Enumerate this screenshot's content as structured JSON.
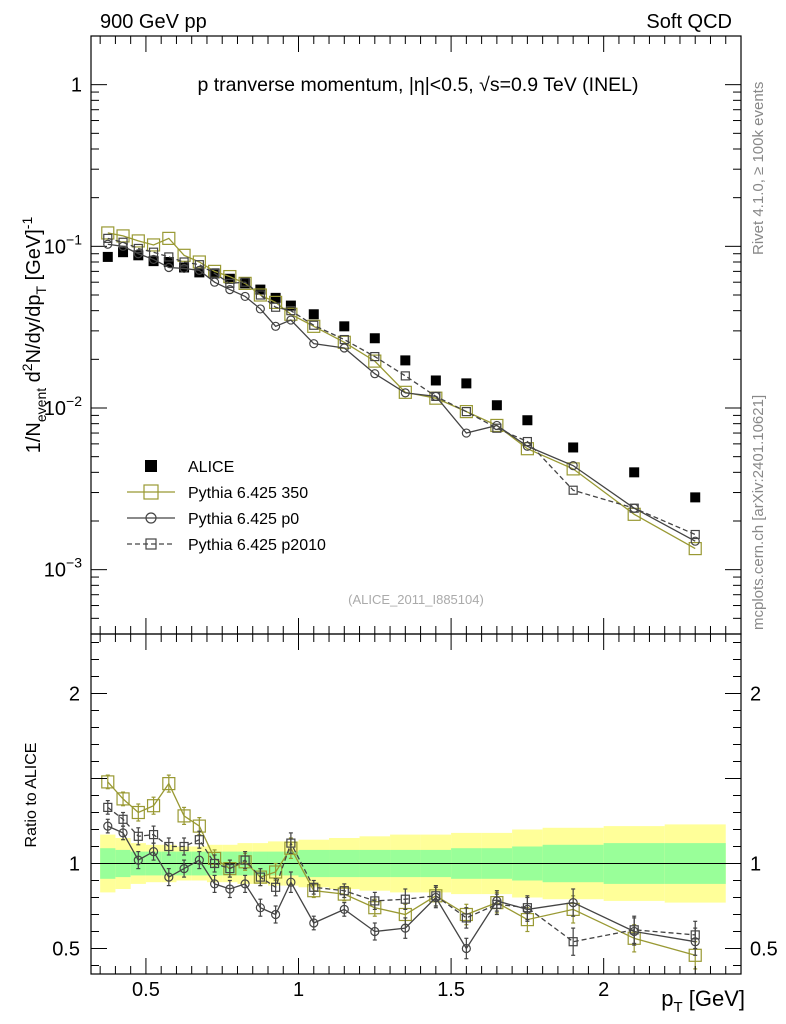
{
  "header": {
    "left": "900 GeV pp",
    "right": "Soft QCD"
  },
  "side_labels": {
    "top": "Rivet 4.1.0, ≥ 100k events",
    "bottom": "mcplots.cern.ch [arXiv:2401.10621]"
  },
  "chart_data": [
    {
      "type": "line",
      "scale": "log",
      "title": "p tranverse momentum, |η|<0.5, √s=0.9 TeV (INEL)",
      "ylabel": "1/N_event d²N/dy/dp_T [GeV]⁻¹",
      "analysis_tag": "(ALICE_2011_I885104)",
      "xlim": [
        0.32,
        2.45
      ],
      "ylim": [
        0.0004,
        2.0
      ],
      "y_ticks": [
        {
          "value": 0.001,
          "base": "10",
          "exp": "−3"
        },
        {
          "value": 0.01,
          "base": "10",
          "exp": "−2"
        },
        {
          "value": 0.1,
          "base": "10",
          "exp": "−1"
        },
        {
          "value": 1,
          "base": "1",
          "exp": ""
        }
      ],
      "x": [
        0.375,
        0.425,
        0.475,
        0.525,
        0.575,
        0.625,
        0.675,
        0.725,
        0.775,
        0.825,
        0.875,
        0.925,
        0.975,
        1.05,
        1.15,
        1.25,
        1.35,
        1.45,
        1.55,
        1.65,
        1.75,
        1.9,
        2.1,
        2.3
      ],
      "series": [
        {
          "name": "ALICE",
          "style": "data",
          "color": "#000000",
          "values": [
            0.086,
            0.092,
            0.088,
            0.081,
            0.08,
            0.074,
            0.069,
            0.068,
            0.063,
            0.059,
            0.054,
            0.048,
            0.043,
            0.038,
            0.032,
            0.027,
            0.0197,
            0.0148,
            0.0142,
            0.0104,
            0.0084,
            0.0057,
            0.004,
            0.0028
          ]
        },
        {
          "name": "Pythia 6.425 350",
          "style": "solid",
          "marker": "square",
          "color": "#999933",
          "values": [
            0.121,
            0.116,
            0.108,
            0.102,
            0.112,
            0.088,
            0.08,
            0.07,
            0.065,
            0.059,
            0.05,
            0.045,
            0.038,
            0.032,
            0.0255,
            0.0195,
            0.0125,
            0.0115,
            0.0095,
            0.0078,
            0.0056,
            0.0042,
            0.0022,
            0.00135
          ]
        },
        {
          "name": "Pythia 6.425 p0",
          "style": "solid",
          "marker": "circle",
          "color": "#444444",
          "values": [
            0.103,
            0.1,
            0.09,
            0.083,
            0.074,
            0.073,
            0.071,
            0.06,
            0.054,
            0.049,
            0.041,
            0.032,
            0.035,
            0.025,
            0.0235,
            0.0163,
            0.0124,
            0.0118,
            0.007,
            0.0078,
            0.0058,
            0.0044,
            0.0024,
            0.0015
          ]
        },
        {
          "name": "Pythia 6.425 p2010",
          "style": "dashed",
          "marker": "square",
          "color": "#444444",
          "values": [
            0.112,
            0.106,
            0.097,
            0.092,
            0.086,
            0.08,
            0.077,
            0.068,
            0.059,
            0.06,
            0.05,
            0.042,
            0.04,
            0.0325,
            0.0265,
            0.0208,
            0.0158,
            0.0118,
            0.0095,
            0.0075,
            0.0062,
            0.0031,
            0.0024,
            0.00165
          ]
        }
      ],
      "legend": [
        {
          "label": "ALICE",
          "series": 0
        },
        {
          "label": "Pythia 6.425 350",
          "series": 1
        },
        {
          "label": "Pythia 6.425 p0",
          "series": 2
        },
        {
          "label": "Pythia 6.425 p2010",
          "series": 3
        }
      ],
      "legend_position": "lower-left"
    },
    {
      "type": "line",
      "ylabel": "Ratio to ALICE",
      "xlabel": "p_T [GeV]",
      "xlim": [
        0.32,
        2.45
      ],
      "ylim": [
        0.35,
        2.35
      ],
      "x_ticks": [
        {
          "value": 0.5,
          "label": "0.5"
        },
        {
          "value": 1,
          "label": "1"
        },
        {
          "value": 1.5,
          "label": "1.5"
        },
        {
          "value": 2,
          "label": "2"
        }
      ],
      "y_ticks": [
        {
          "value": 0.5,
          "label": "0.5"
        },
        {
          "value": 1,
          "label": "1"
        },
        {
          "value": 2,
          "label": "2"
        }
      ],
      "bins": [
        0.35,
        0.4,
        0.45,
        0.5,
        0.55,
        0.6,
        0.65,
        0.7,
        0.75,
        0.8,
        0.85,
        0.9,
        0.95,
        1.0,
        1.1,
        1.2,
        1.3,
        1.4,
        1.5,
        1.6,
        1.7,
        1.8,
        2.0,
        2.2,
        2.4
      ],
      "band_inner": [
        0.09,
        0.08,
        0.07,
        0.07,
        0.07,
        0.07,
        0.07,
        0.07,
        0.07,
        0.07,
        0.07,
        0.07,
        0.07,
        0.08,
        0.08,
        0.08,
        0.08,
        0.08,
        0.09,
        0.09,
        0.1,
        0.11,
        0.12,
        0.12
      ],
      "band_outer": [
        0.17,
        0.15,
        0.12,
        0.11,
        0.11,
        0.1,
        0.1,
        0.11,
        0.11,
        0.12,
        0.12,
        0.13,
        0.13,
        0.14,
        0.15,
        0.16,
        0.17,
        0.17,
        0.18,
        0.18,
        0.2,
        0.21,
        0.22,
        0.23
      ],
      "reference": 1,
      "x": [
        0.375,
        0.425,
        0.475,
        0.525,
        0.575,
        0.625,
        0.675,
        0.725,
        0.775,
        0.825,
        0.875,
        0.925,
        0.975,
        1.05,
        1.15,
        1.25,
        1.35,
        1.45,
        1.55,
        1.65,
        1.75,
        1.9,
        2.1,
        2.3
      ],
      "series": [
        {
          "name": "Pythia 6.425 350",
          "style": "solid",
          "marker": "square",
          "color": "#999933",
          "values": [
            1.48,
            1.38,
            1.3,
            1.34,
            1.47,
            1.28,
            1.22,
            1.03,
            0.97,
            1.01,
            0.92,
            0.95,
            1.09,
            0.84,
            0.82,
            0.74,
            0.7,
            0.81,
            0.7,
            0.77,
            0.67,
            0.73,
            0.56,
            0.46
          ],
          "err": [
            0.04,
            0.04,
            0.05,
            0.05,
            0.05,
            0.05,
            0.05,
            0.05,
            0.05,
            0.05,
            0.05,
            0.05,
            0.06,
            0.04,
            0.04,
            0.05,
            0.06,
            0.06,
            0.06,
            0.06,
            0.07,
            0.08,
            0.08,
            0.08
          ]
        },
        {
          "name": "Pythia 6.425 p0",
          "style": "solid",
          "marker": "circle",
          "color": "#444444",
          "values": [
            1.22,
            1.18,
            1.02,
            1.07,
            0.92,
            0.97,
            1.02,
            0.88,
            0.85,
            0.88,
            0.74,
            0.7,
            0.89,
            0.65,
            0.73,
            0.6,
            0.62,
            0.8,
            0.5,
            0.78,
            0.73,
            0.77,
            0.6,
            0.54
          ],
          "err": [
            0.04,
            0.04,
            0.05,
            0.05,
            0.05,
            0.05,
            0.05,
            0.05,
            0.05,
            0.05,
            0.05,
            0.05,
            0.06,
            0.04,
            0.04,
            0.05,
            0.06,
            0.06,
            0.06,
            0.06,
            0.07,
            0.08,
            0.08,
            0.08
          ]
        },
        {
          "name": "Pythia 6.425 p2010",
          "style": "dashed",
          "marker": "square",
          "color": "#444444",
          "values": [
            1.33,
            1.26,
            1.16,
            1.17,
            1.1,
            1.1,
            1.14,
            1.0,
            0.97,
            1.02,
            0.92,
            0.86,
            1.12,
            0.86,
            0.84,
            0.78,
            0.79,
            0.81,
            0.68,
            0.76,
            0.74,
            0.54,
            0.61,
            0.58
          ],
          "err": [
            0.04,
            0.04,
            0.05,
            0.05,
            0.05,
            0.05,
            0.05,
            0.05,
            0.05,
            0.05,
            0.05,
            0.05,
            0.06,
            0.04,
            0.04,
            0.05,
            0.06,
            0.06,
            0.06,
            0.06,
            0.07,
            0.08,
            0.08,
            0.08
          ]
        }
      ]
    }
  ]
}
